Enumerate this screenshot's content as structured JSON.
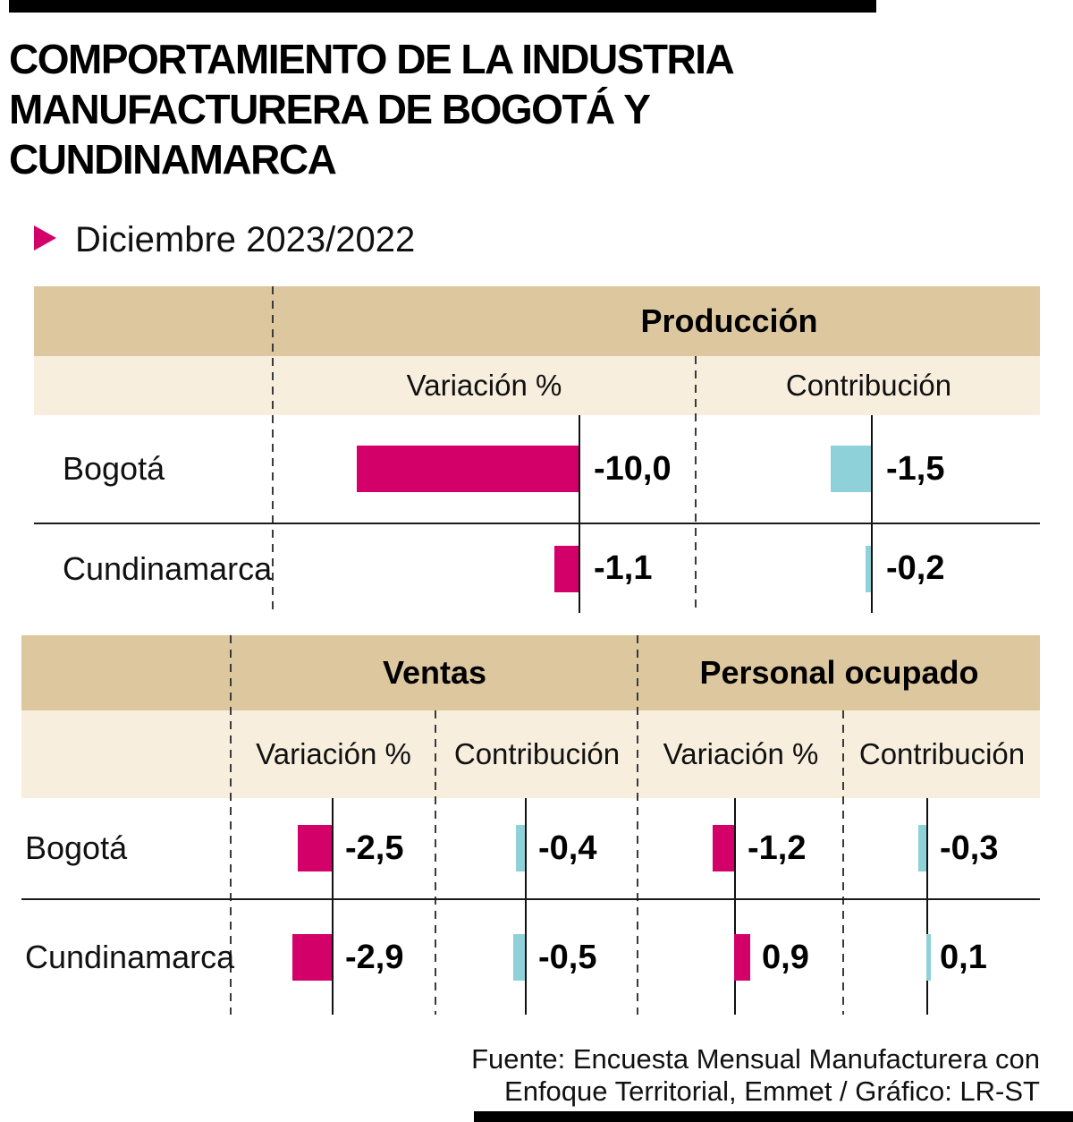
{
  "colors": {
    "magenta": "#d4006a",
    "teal": "#8ed1d8",
    "band-header": "#dcc79f",
    "band-subheader": "#f7eede"
  },
  "header": {
    "title_lines": [
      "COMPORTAMIENTO DE LA INDUSTRIA",
      "MANUFACTURERA DE BOGOTÁ Y",
      "CUNDINAMARCA"
    ],
    "subtitle": "Diciembre 2023/2022",
    "subtitle_marker_icon": "triangle-right"
  },
  "footer": {
    "lines": [
      "Fuente: Encuesta Mensual Manufacturera con",
      "Enfoque Territorial, Emmet / Gráfico: LR-ST"
    ]
  },
  "chart_data": {
    "type": "bar",
    "orientation": "horizontal",
    "zero_axis": true,
    "negative_direction": "left",
    "title": "Comportamiento de la industria manufacturera de Bogotá y Cundinamarca",
    "period": "Diciembre 2023/2022",
    "tables": [
      {
        "id": "produccion",
        "groups": [
          {
            "label": "Producción",
            "span": 2
          }
        ],
        "columns": [
          {
            "label": "Variación %",
            "series_color": "#d4006a"
          },
          {
            "label": "Contribución",
            "series_color": "#8ed1d8"
          }
        ],
        "rows": [
          {
            "label": "Bogotá",
            "values": [
              -10.0,
              -1.5
            ],
            "labels": [
              "-10,0",
              "-1,5"
            ]
          },
          {
            "label": "Cundinamarca",
            "values": [
              -1.1,
              -0.2
            ],
            "labels": [
              "-1,1",
              "-0,2"
            ]
          }
        ]
      },
      {
        "id": "ventas-personal-ocupado",
        "groups": [
          {
            "label": "Ventas",
            "span": 2
          },
          {
            "label": "Personal ocupado",
            "span": 2
          }
        ],
        "columns": [
          {
            "label": "Variación %",
            "series_color": "#d4006a"
          },
          {
            "label": "Contribución",
            "series_color": "#8ed1d8"
          },
          {
            "label": "Variación %",
            "series_color": "#d4006a"
          },
          {
            "label": "Contribución",
            "series_color": "#8ed1d8"
          }
        ],
        "rows": [
          {
            "label": "Bogotá",
            "values": [
              -2.5,
              -0.4,
              -1.2,
              -0.3
            ],
            "labels": [
              "-2,5",
              "-0,4",
              "-1,2",
              "-0,3"
            ]
          },
          {
            "label": "Cundinamarca",
            "values": [
              -2.9,
              -0.5,
              0.9,
              0.1
            ],
            "labels": [
              "-2,9",
              "-0,5",
              "0,9",
              "0,1"
            ]
          }
        ]
      }
    ]
  }
}
